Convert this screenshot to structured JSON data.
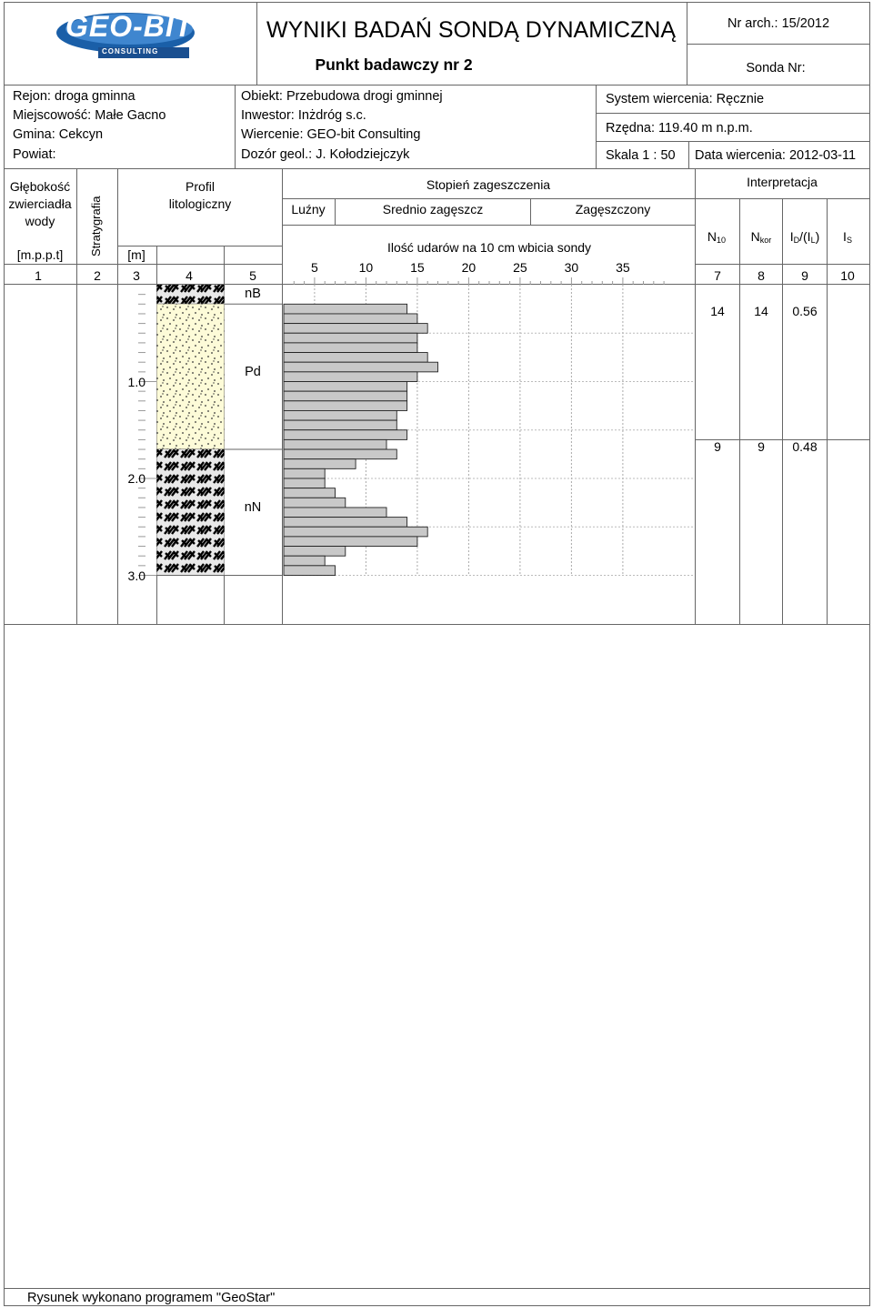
{
  "header": {
    "logo_text": "GEO-BIT",
    "logo_subtext": "CONSULTING",
    "title": "WYNIKI BADAŃ SONDĄ DYNAMICZNĄ",
    "subtitle": "Punkt badawczy nr  2",
    "nr_arch": "Nr arch.: 15/2012",
    "sonda_nr": "Sonda Nr:"
  },
  "info": {
    "rejon": "Rejon: droga gminna",
    "miejscowosc": "Miejscowość: Małe Gacno",
    "gmina": "Gmina: Cekcyn",
    "powiat": "Powiat:",
    "obiekt": "Obiekt: Przebudowa drogi gminnej",
    "inwestor": "Inwestor: Inżdróg s.c.",
    "wiercenie": "Wiercenie: GEO-bit Consulting",
    "dozor": "Dozór geol.: J. Kołodziejczyk",
    "system": "System wiercenia: Ręcznie",
    "rzedna": "Rzędna: 119.40 m n.p.m.",
    "skala": "Skala 1 : 50",
    "data": "Data wiercenia: 2012-03-11"
  },
  "columns": {
    "water_l1": "Głębokość",
    "water_l2": "zwierciadła",
    "water_l3": "wody",
    "water_unit": "[m.p.p.t]",
    "strat": "Stratygrafia",
    "depth_unit": "[m]",
    "profile_l1": "Profil",
    "profile_l2": "litologiczny",
    "degree": "Stopień zageszczenia",
    "loose": "Luźny",
    "medium": "Srednio zagęszcz",
    "dense": "Zagęszczony",
    "blows": "Ilość udarów na 10 cm wbicia sondy",
    "interp": "Interpretacja",
    "n10": "N",
    "n10_sub": "10",
    "nkor": "N",
    "nkor_sub": "kor",
    "id_a": "I",
    "id_a_sub": "D",
    "id_b": "/(I",
    "id_b_sub": "L",
    "id_c": ")",
    "is": "I",
    "is_sub": "S",
    "nums": [
      "1",
      "2",
      "3",
      "4",
      "5",
      "7",
      "8",
      "9",
      "10"
    ]
  },
  "layers": [
    {
      "code": "nB",
      "pattern": "fill",
      "top": 0.0,
      "bottom": 0.2
    },
    {
      "code": "Pd",
      "pattern": "sand",
      "top": 0.2,
      "bottom": 1.7
    },
    {
      "code": "nN",
      "pattern": "fill",
      "top": 1.7,
      "bottom": 3.0
    }
  ],
  "depth_labels": [
    "1.0",
    "2.0",
    "3.0"
  ],
  "interpretation": [
    {
      "n10": "14",
      "nkor": "14",
      "id": "0.56"
    },
    {
      "n10": "9",
      "nkor": "9",
      "id": "0.48"
    }
  ],
  "chart_data": {
    "type": "bar",
    "orientation": "horizontal",
    "title": "",
    "xlabel": "Ilość udarów na 10 cm wbicia sondy",
    "ylabel": "[m]",
    "xlim": [
      2,
      40
    ],
    "x_ticks": [
      5,
      10,
      15,
      20,
      25,
      30,
      35
    ],
    "depth_from": [
      0.2,
      0.3,
      0.4,
      0.5,
      0.6,
      0.7,
      0.8,
      0.9,
      1.0,
      1.1,
      1.2,
      1.3,
      1.4,
      1.5,
      1.6,
      1.7,
      1.8,
      1.9,
      2.0,
      2.1,
      2.2,
      2.3,
      2.4,
      2.5,
      2.6,
      2.7,
      2.8,
      2.9
    ],
    "values": [
      14,
      15,
      16,
      15,
      15,
      16,
      17,
      15,
      14,
      14,
      14,
      13,
      13,
      14,
      12,
      13,
      9,
      6,
      6,
      7,
      8,
      12,
      14,
      16,
      15,
      8,
      6,
      7
    ]
  },
  "footer": "Rysunek wykonano programem \"GeoStar\""
}
